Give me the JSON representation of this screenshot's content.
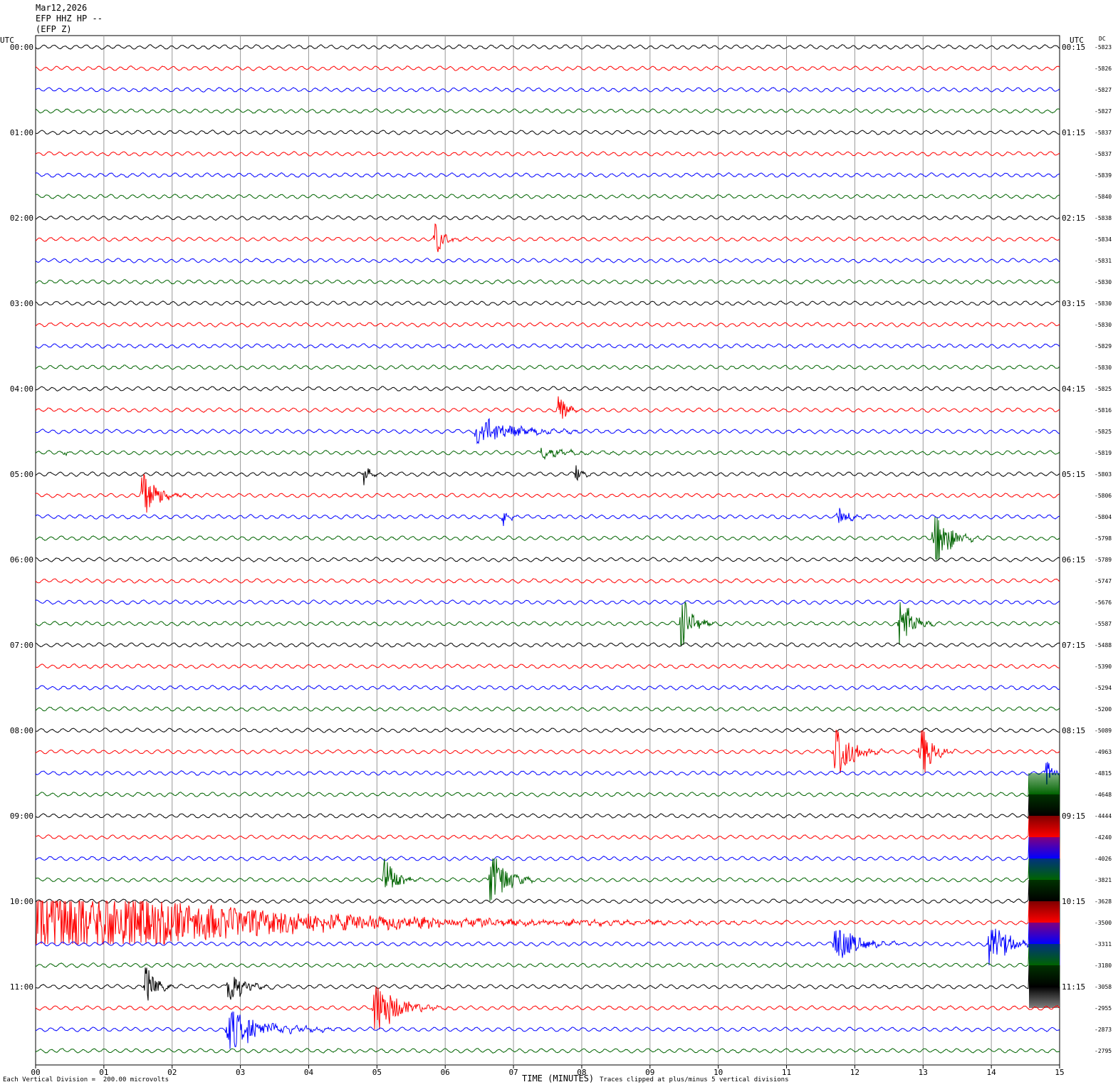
{
  "header": {
    "date": "Mar12,2026",
    "station": "EFP HHZ HP --",
    "channel": "(EFP Z)"
  },
  "chart_data": {
    "type": "line",
    "xlabel": "TIME (MINUTES)",
    "xlim": [
      0,
      15
    ],
    "x_ticks": [
      "00",
      "01",
      "02",
      "03",
      "04",
      "05",
      "06",
      "07",
      "08",
      "09",
      "10",
      "11",
      "12",
      "13",
      "14",
      "15"
    ],
    "left_axis_label": "UTC",
    "right_axis_label": "UTC",
    "dc_label": "DC",
    "left_hour_labels": [
      "00:00",
      "01:00",
      "02:00",
      "03:00",
      "04:00",
      "05:00",
      "06:00",
      "07:00",
      "08:00",
      "09:00",
      "10:00",
      "11:00"
    ],
    "right_hour_labels": [
      "00:15",
      "01:15",
      "02:15",
      "03:15",
      "04:15",
      "05:15",
      "06:15",
      "07:15",
      "08:15",
      "09:15",
      "10:15",
      "11:15"
    ],
    "trace_colors": [
      "#000000",
      "#ff0000",
      "#0000ff",
      "#006400"
    ],
    "dc_offsets": [
      -5823,
      -5826,
      -5827,
      -5827,
      -5837,
      -5837,
      -5839,
      -5840,
      -5838,
      -5834,
      -5831,
      -5830,
      -5830,
      -5830,
      -5829,
      -5830,
      -5825,
      -5816,
      -5825,
      -5819,
      -5803,
      -5806,
      -5804,
      -5798,
      -5789,
      -5747,
      -5676,
      -5587,
      -5488,
      -5390,
      -5294,
      -5200,
      -5089,
      -4963,
      -4815,
      -4648,
      -4444,
      -4240,
      -4026,
      -3821,
      -3628,
      -3500,
      -3311,
      -3180,
      -3058,
      -2955,
      -2873,
      -2795
    ],
    "events": [
      {
        "row": 9,
        "minute": 5.85,
        "amp": 2.0,
        "dur": 0.25
      },
      {
        "row": 17,
        "minute": 7.65,
        "amp": 2.4,
        "dur": 0.2
      },
      {
        "row": 18,
        "minute": 6.45,
        "amp": 1.8,
        "dur": 1.0
      },
      {
        "row": 19,
        "minute": 0.4,
        "amp": 0.6,
        "dur": 0.1
      },
      {
        "row": 19,
        "minute": 7.4,
        "amp": 0.6,
        "dur": 0.8
      },
      {
        "row": 20,
        "minute": 4.8,
        "amp": 1.3,
        "dur": 0.15
      },
      {
        "row": 20,
        "minute": 7.9,
        "amp": 1.3,
        "dur": 0.15
      },
      {
        "row": 21,
        "minute": 1.55,
        "amp": 3.5,
        "dur": 0.4
      },
      {
        "row": 22,
        "minute": 6.85,
        "amp": 1.3,
        "dur": 0.15
      },
      {
        "row": 22,
        "minute": 11.75,
        "amp": 1.2,
        "dur": 0.3
      },
      {
        "row": 23,
        "minute": 13.15,
        "amp": 4.5,
        "dur": 0.4
      },
      {
        "row": 27,
        "minute": 9.45,
        "amp": 4.0,
        "dur": 0.3
      },
      {
        "row": 27,
        "minute": 12.65,
        "amp": 4.5,
        "dur": 0.3
      },
      {
        "row": 33,
        "minute": 11.7,
        "amp": 5.0,
        "dur": 0.4
      },
      {
        "row": 33,
        "minute": 12.95,
        "amp": 4.5,
        "dur": 0.3
      },
      {
        "row": 34,
        "minute": 14.8,
        "amp": 2.0,
        "dur": 0.2
      },
      {
        "row": 39,
        "minute": 5.1,
        "amp": 3.5,
        "dur": 0.3
      },
      {
        "row": 39,
        "minute": 6.65,
        "amp": 4.8,
        "dur": 0.4
      },
      {
        "row": 41,
        "minute": 0.0,
        "amp": 5.0,
        "dur": 5.5
      },
      {
        "row": 42,
        "minute": 11.7,
        "amp": 2.5,
        "dur": 0.6
      },
      {
        "row": 42,
        "minute": 13.95,
        "amp": 3.5,
        "dur": 0.5
      },
      {
        "row": 44,
        "minute": 2.8,
        "amp": 2.5,
        "dur": 0.4
      },
      {
        "row": 44,
        "minute": 1.6,
        "amp": 2.5,
        "dur": 0.3
      },
      {
        "row": 45,
        "minute": 4.95,
        "amp": 4.0,
        "dur": 0.6
      },
      {
        "row": 46,
        "minute": 2.8,
        "amp": 2.5,
        "dur": 1.0
      }
    ],
    "clipped_block": {
      "row_start": 35,
      "row_end": 44,
      "minute_start": 14.55,
      "minute_end": 15
    },
    "scale_note": "Each Vertical Division =  200.00 microvolts",
    "clip_note": "Traces clipped at plus/minus 5 vertical divisions"
  }
}
